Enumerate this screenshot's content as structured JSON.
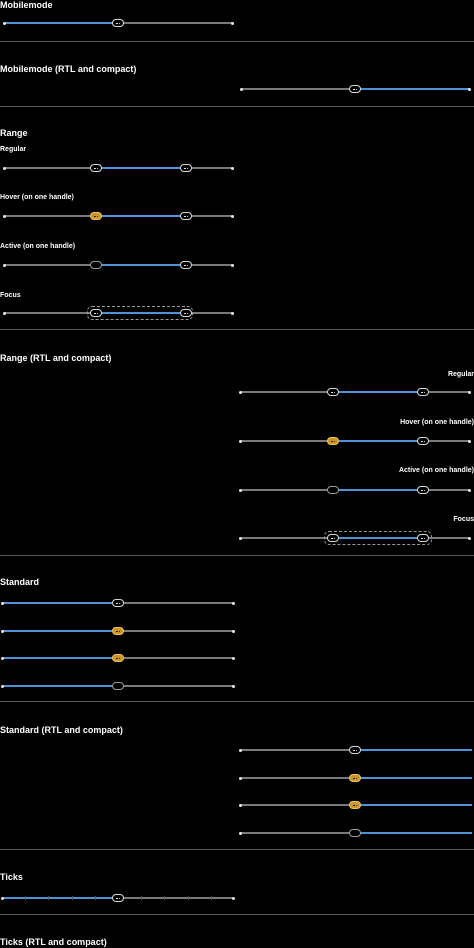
{
  "sections": {
    "mobilemode": "Mobilemode",
    "mobilemode_rtl": "Mobilemode (RTL and compact)",
    "range": "Range",
    "range_rtl": "Range (RTL and compact)",
    "standard": "Standard",
    "standard_rtl": "Standard (RTL and compact)",
    "ticks": "Ticks",
    "ticks_rtl": "Ticks (RTL and compact)"
  },
  "range_states": {
    "regular": "Regular",
    "hover": "Hover (on one handle)",
    "active": "Active (on one handle)",
    "focus": "Focus"
  },
  "range_rtl_states": {
    "regular": "Regular",
    "hover": "Hover (on one handle)",
    "active": "Active (on one handle)",
    "focus": "Focus"
  },
  "colors": {
    "track": "#7a7a7a",
    "fill": "#4f93d6",
    "handle_hover": "#c9962a",
    "divider": "#5a5a5a"
  },
  "slider_values": {
    "mobilemode": 0.5,
    "mobilemode_rtl": 0.5,
    "range": [
      0.4,
      0.79
    ],
    "range_rtl": [
      0.4,
      0.79
    ],
    "standard": 0.5,
    "standard_rtl": 0.5,
    "ticks": 0.5
  }
}
